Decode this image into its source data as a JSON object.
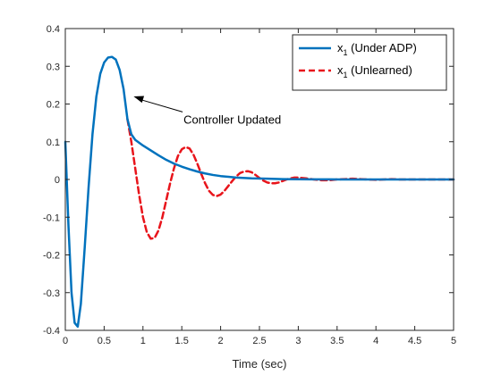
{
  "chart_data": {
    "type": "line",
    "xlabel": "Time (sec)",
    "ylabel": "",
    "xlim": [
      0,
      5
    ],
    "ylim": [
      -0.4,
      0.4
    ],
    "xticks": [
      0,
      0.5,
      1,
      1.5,
      2,
      2.5,
      3,
      3.5,
      4,
      4.5,
      5
    ],
    "xtick_labels": [
      "0",
      "0.5",
      "1",
      "1.5",
      "2",
      "2.5",
      "3",
      "3.5",
      "4",
      "4.5",
      "5"
    ],
    "yticks": [
      -0.4,
      -0.3,
      -0.2,
      -0.1,
      0,
      0.1,
      0.2,
      0.3,
      0.4
    ],
    "ytick_labels": [
      "-0.4",
      "-0.3",
      "-0.2",
      "-0.1",
      "0",
      "0.1",
      "0.2",
      "0.3",
      "0.4"
    ],
    "grid": false,
    "legend_position": "top-right",
    "series": [
      {
        "name": "x",
        "name_subscript": "1",
        "name_suffix": " (Under ADP)",
        "color": "#0072bd",
        "style": "solid",
        "x": [
          0,
          0.04,
          0.08,
          0.12,
          0.16,
          0.2,
          0.25,
          0.3,
          0.35,
          0.4,
          0.45,
          0.5,
          0.55,
          0.6,
          0.65,
          0.7,
          0.75,
          0.8,
          0.85,
          0.9,
          1.0,
          1.1,
          1.2,
          1.3,
          1.4,
          1.5,
          1.6,
          1.7,
          1.8,
          1.9,
          2.0,
          2.2,
          2.4,
          2.6,
          2.8,
          3.0,
          3.2,
          3.4,
          3.6,
          3.8,
          4.0,
          4.5,
          5.0
        ],
        "y": [
          0.1,
          -0.12,
          -0.3,
          -0.38,
          -0.39,
          -0.33,
          -0.18,
          -0.02,
          0.12,
          0.22,
          0.28,
          0.31,
          0.323,
          0.325,
          0.318,
          0.29,
          0.24,
          0.16,
          0.12,
          0.105,
          0.09,
          0.077,
          0.064,
          0.052,
          0.042,
          0.034,
          0.027,
          0.021,
          0.016,
          0.012,
          0.009,
          0.005,
          0.003,
          0.002,
          0.001,
          0.0005,
          0.0003,
          0.0002,
          0.0001,
          0,
          0,
          0,
          0
        ]
      },
      {
        "name": "x",
        "name_subscript": "1",
        "name_suffix": " (Unlearned)",
        "color": "#e8141b",
        "style": "dashed",
        "x": [
          0.8,
          0.85,
          0.9,
          0.95,
          1.0,
          1.05,
          1.1,
          1.15,
          1.2,
          1.25,
          1.3,
          1.35,
          1.4,
          1.45,
          1.5,
          1.55,
          1.6,
          1.65,
          1.7,
          1.75,
          1.8,
          1.85,
          1.9,
          1.95,
          2.0,
          2.05,
          2.1,
          2.15,
          2.2,
          2.25,
          2.3,
          2.35,
          2.4,
          2.45,
          2.5,
          2.55,
          2.6,
          2.65,
          2.7,
          2.75,
          2.8,
          2.85,
          2.9,
          2.95,
          3.0,
          3.1,
          3.2,
          3.3,
          3.4,
          3.5,
          3.6,
          3.7,
          3.8,
          3.9,
          4.0,
          4.1,
          4.2,
          4.3,
          4.4,
          4.5,
          4.75,
          5.0
        ],
        "y": [
          0.16,
          0.1,
          0.03,
          -0.04,
          -0.1,
          -0.14,
          -0.157,
          -0.155,
          -0.135,
          -0.1,
          -0.055,
          -0.01,
          0.03,
          0.062,
          0.08,
          0.086,
          0.082,
          0.066,
          0.042,
          0.015,
          -0.01,
          -0.03,
          -0.041,
          -0.044,
          -0.04,
          -0.03,
          -0.017,
          -0.004,
          0.008,
          0.017,
          0.021,
          0.022,
          0.019,
          0.012,
          0.004,
          -0.003,
          -0.008,
          -0.01,
          -0.01,
          -0.008,
          -0.004,
          0,
          0.003,
          0.005,
          0.005,
          0.003,
          0,
          -0.002,
          -0.002,
          0,
          0.001,
          0.002,
          0.001,
          0,
          -0.001,
          0,
          0.001,
          0,
          0,
          0,
          0,
          0
        ]
      }
    ],
    "annotation": {
      "text": "Controller Updated",
      "arrow_target_x": 0.88,
      "arrow_target_y": 0.22,
      "text_anchor_x": 1.58,
      "text_anchor_y": 0.16
    }
  }
}
